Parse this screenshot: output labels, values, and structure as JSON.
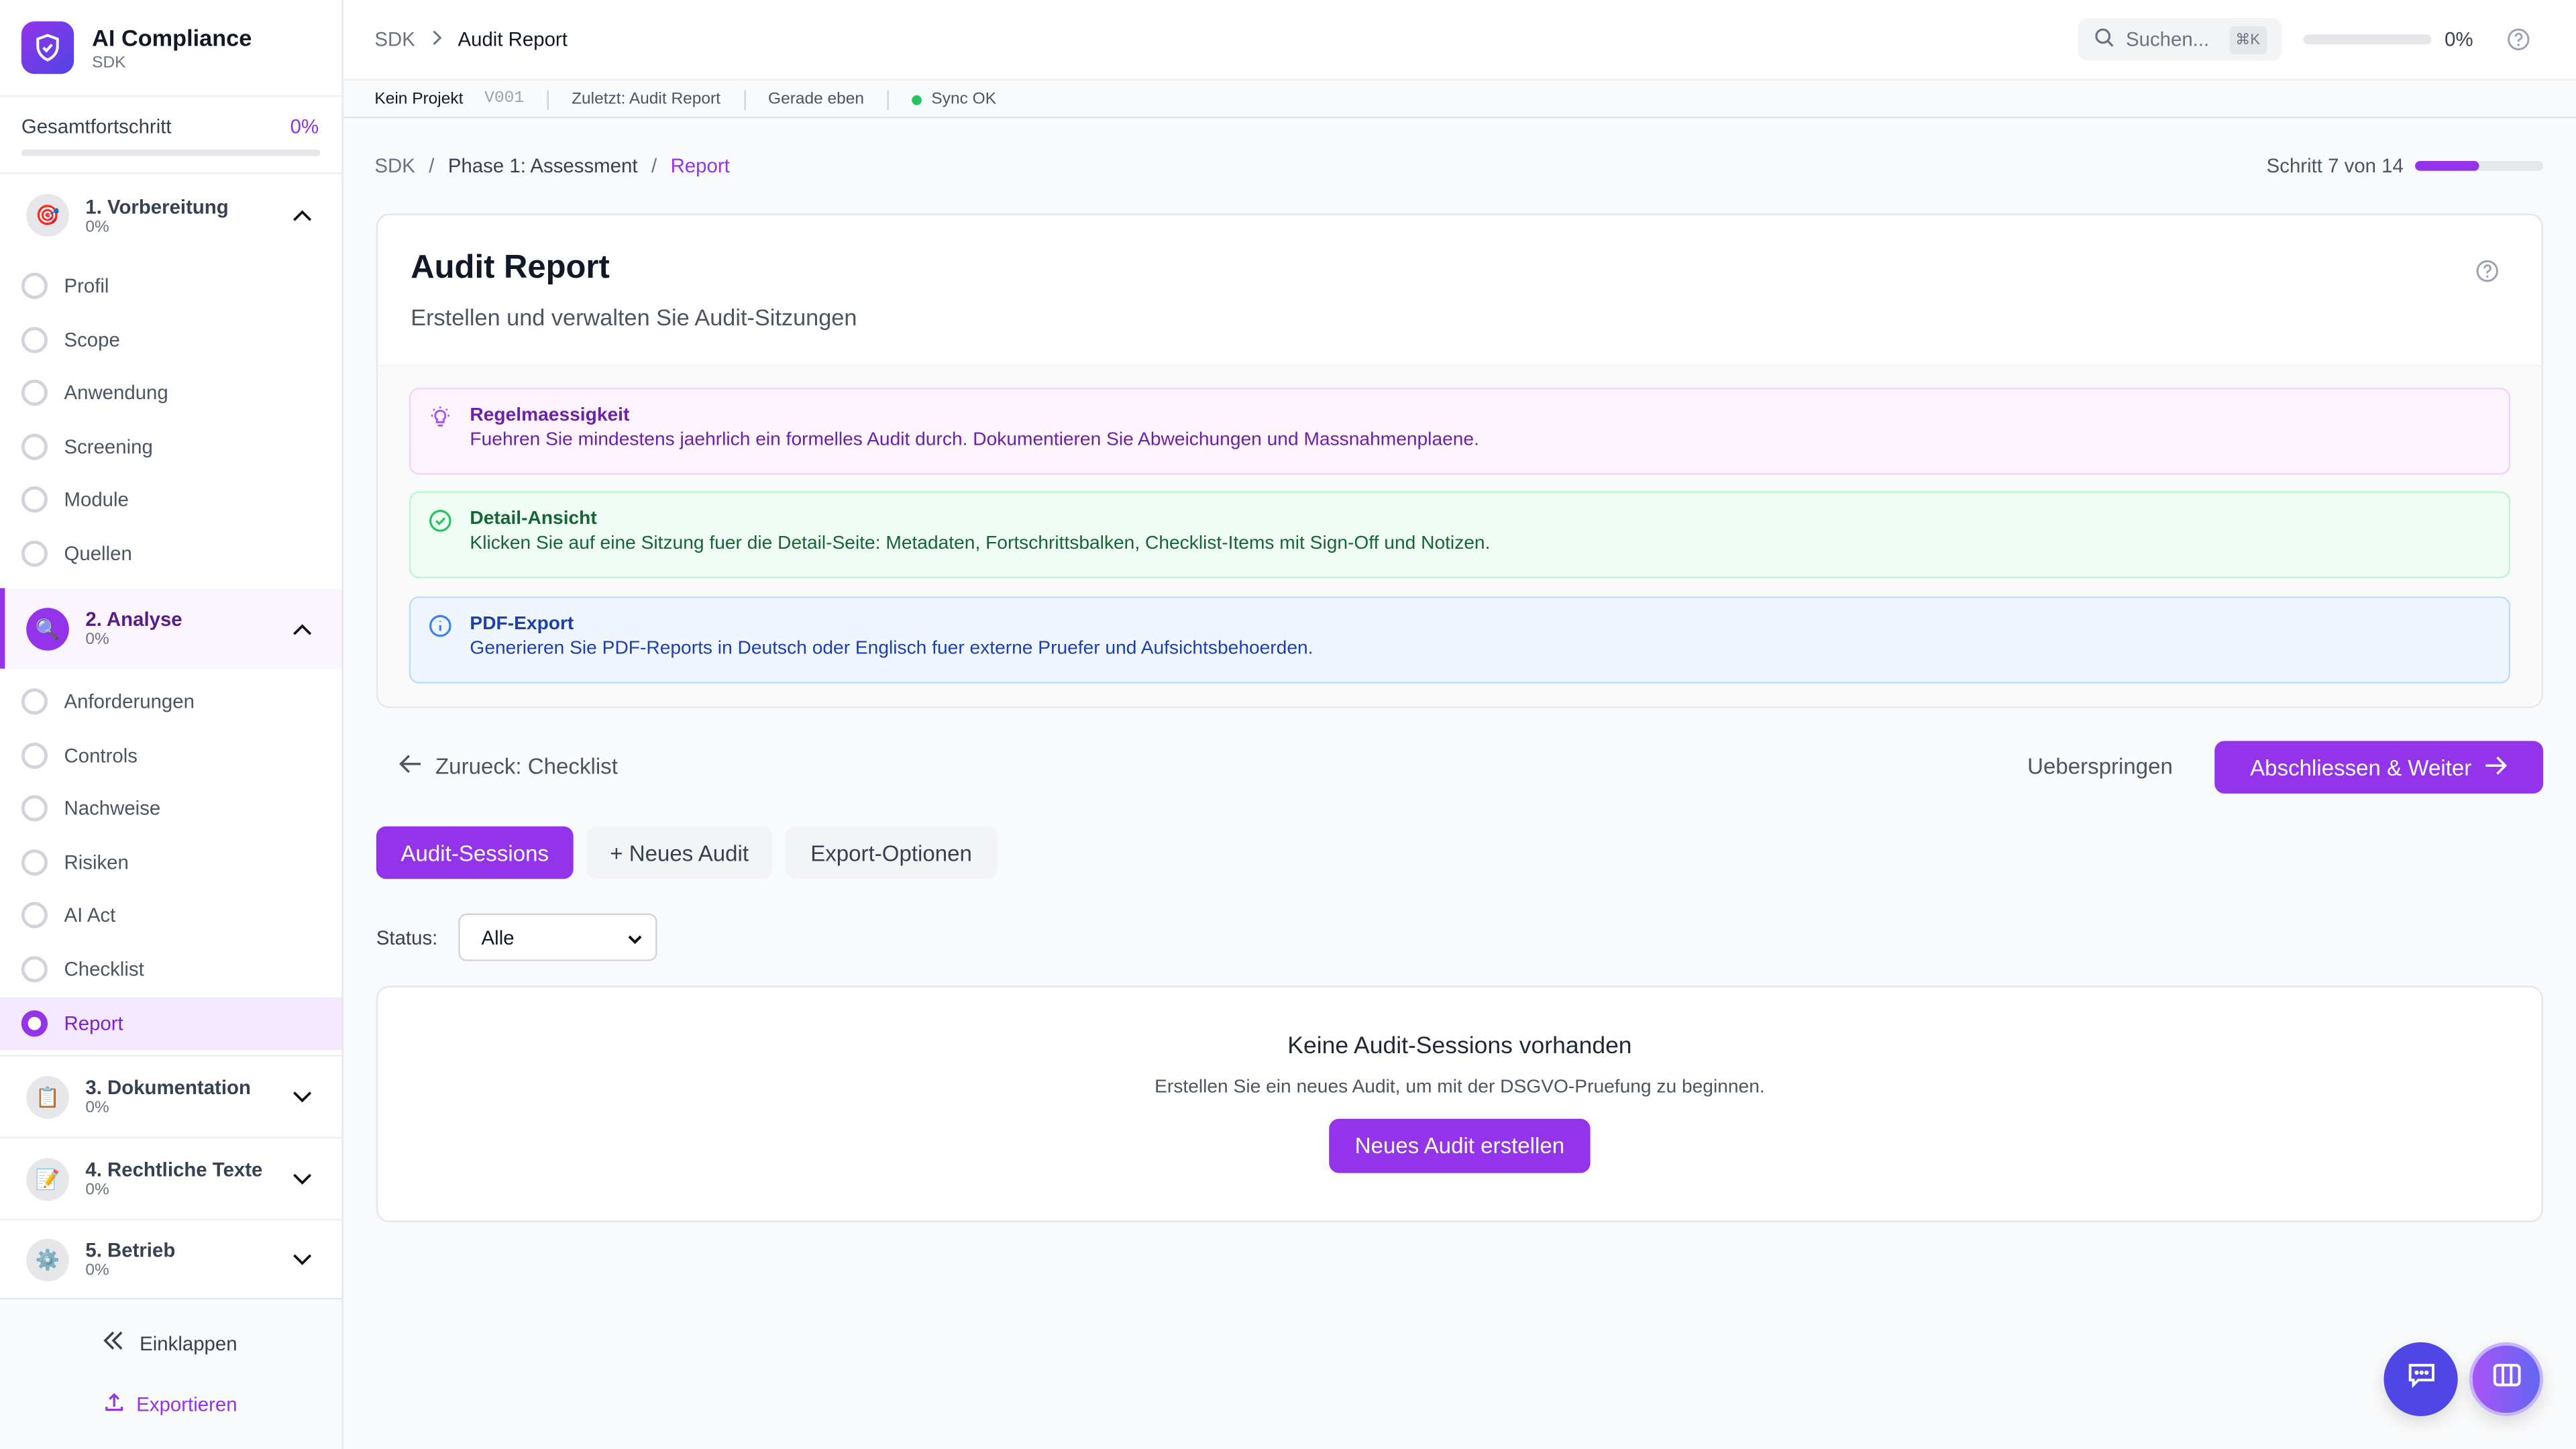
{
  "app": {
    "title": "AI Compliance",
    "subtitle": "SDK"
  },
  "sidebar": {
    "progress_label": "Gesamtfortschritt",
    "progress_value": "0%",
    "progress_fraction": 0,
    "groups": [
      {
        "title": "1. Vorbereitung",
        "progress": "0%",
        "icon": "target-icon",
        "expanded": true,
        "items": [
          "Profil",
          "Scope",
          "Anwendung",
          "Screening",
          "Module",
          "Quellen"
        ]
      },
      {
        "title": "2. Analyse",
        "progress": "0%",
        "icon": "magnifier-icon",
        "expanded": true,
        "active": true,
        "items": [
          "Anforderungen",
          "Controls",
          "Nachweise",
          "Risiken",
          "AI Act",
          "Checklist",
          "Report"
        ]
      },
      {
        "title": "3. Dokumentation",
        "progress": "0%",
        "icon": "clipboard-icon",
        "expanded": false
      },
      {
        "title": "4. Rechtliche Texte",
        "progress": "0%",
        "icon": "pencil-icon",
        "expanded": false
      },
      {
        "title": "5. Betrieb",
        "progress": "0%",
        "icon": "gear-icon",
        "expanded": false
      }
    ],
    "active_item": "Report",
    "collapse_label": "Einklappen",
    "export_label": "Exportieren"
  },
  "topbar": {
    "breadcrumb": [
      "SDK",
      "Audit Report"
    ],
    "search_placeholder": "Suchen...",
    "search_shortcut": "⌘K",
    "progress_value": "0%",
    "progress_fraction": 0
  },
  "statusbar": {
    "project": "Kein Projekt",
    "version": "V001",
    "last": "Zuletzt: Audit Report",
    "time": "Gerade eben",
    "sync": "Sync OK",
    "sync_color": "#22c55e"
  },
  "page": {
    "breadcrumb": [
      "SDK",
      "Phase 1: Assessment",
      "Report"
    ],
    "step_label": "Schritt 7 von 14",
    "step_fraction": 0.5,
    "title": "Audit Report",
    "subtitle": "Erstellen und verwalten Sie Audit-Sitzungen",
    "tips": [
      {
        "title": "Regelmaessigkeit",
        "text": "Fuehren Sie mindestens jaehrlich ein formelles Audit durch. Dokumentieren Sie Abweichungen und Massnahmenplaene.",
        "icon": "lightbulb-icon"
      },
      {
        "title": "Detail-Ansicht",
        "text": "Klicken Sie auf eine Sitzung fuer die Detail-Seite: Metadaten, Fortschrittsbalken, Checklist-Items mit Sign-Off und Notizen.",
        "icon": "check-circle-icon"
      },
      {
        "title": "PDF-Export",
        "text": "Generieren Sie PDF-Reports in Deutsch oder Englisch fuer externe Pruefer und Aufsichtsbehoerden.",
        "icon": "info-icon"
      }
    ],
    "back_label": "Zurueck: Checklist",
    "skip_label": "Ueberspringen",
    "next_label": "Abschliessen & Weiter",
    "tabs": [
      "Audit-Sessions",
      "+ Neues Audit",
      "Export-Optionen"
    ],
    "active_tab": "Audit-Sessions",
    "filter_label": "Status:",
    "filter_value": "Alle",
    "empty_title": "Keine Audit-Sessions vorhanden",
    "empty_text": "Erstellen Sie ein neues Audit, um mit der DSGVO-Pruefung zu beginnen.",
    "empty_button": "Neues Audit erstellen"
  },
  "colors": {
    "accent": "#9333ea",
    "indigo": "#4f46e5"
  }
}
